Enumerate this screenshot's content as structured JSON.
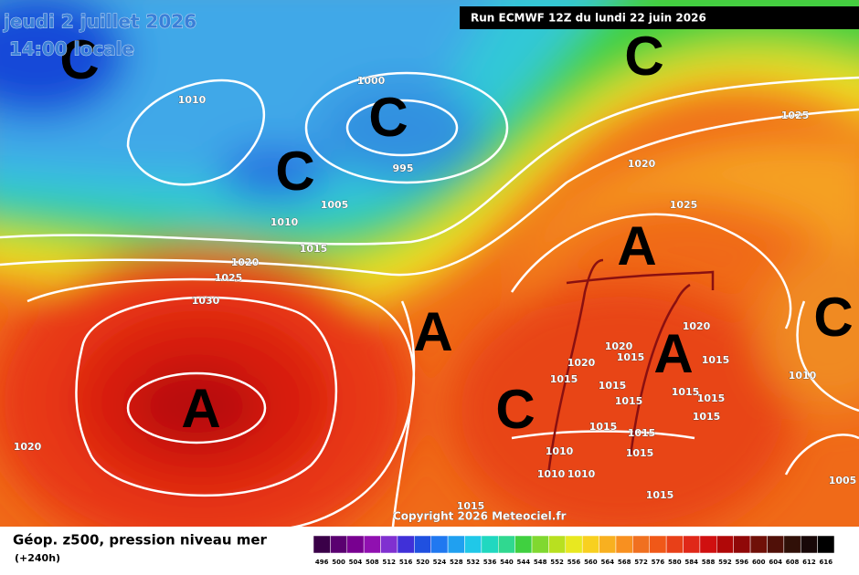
{
  "header": {
    "date": "jeudi 2 juillet 2026",
    "time": "14:00 locale",
    "run": "Run ECMWF 12Z du lundi 22 juin 2026"
  },
  "map": {
    "highs": [
      "A",
      "A",
      "A",
      "A"
    ],
    "lows": [
      "C",
      "C",
      "C",
      "C",
      "C",
      "C"
    ],
    "isobar_labels": [
      1010,
      1000,
      995,
      1005,
      1010,
      1015,
      1020,
      1025,
      1030,
      1020,
      1025,
      1020,
      1025,
      1020,
      1020,
      1015,
      1020,
      1015,
      1015,
      1015,
      1015,
      1015,
      1015,
      1015,
      1015,
      1015,
      1010,
      1015,
      1010,
      1010,
      1015,
      1010,
      1005,
      1015
    ]
  },
  "footer": {
    "copyright": "Copyright 2026 Meteociel.fr",
    "title": "Géop. z500, pression niveau mer",
    "range": "(+240h)",
    "colorbar": {
      "ticks": [
        496,
        500,
        504,
        508,
        512,
        516,
        520,
        524,
        528,
        532,
        536,
        540,
        544,
        548,
        552,
        556,
        560,
        564,
        568,
        572,
        576,
        580,
        584,
        588,
        592,
        596,
        600,
        604,
        608,
        612,
        616
      ],
      "colors": [
        "#3a0048",
        "#5a0070",
        "#780090",
        "#9010b0",
        "#8030d0",
        "#4030d8",
        "#2050e0",
        "#2078f0",
        "#20a0f0",
        "#20c8e8",
        "#20d8c0",
        "#30d890",
        "#40d040",
        "#80d830",
        "#b8e020",
        "#e8e820",
        "#f8d020",
        "#f8b020",
        "#f89020",
        "#f07020",
        "#f05818",
        "#e84018",
        "#e02818",
        "#d01010",
        "#b00808",
        "#900808",
        "#701008",
        "#501008",
        "#301008",
        "#180808",
        "#000000"
      ]
    }
  }
}
